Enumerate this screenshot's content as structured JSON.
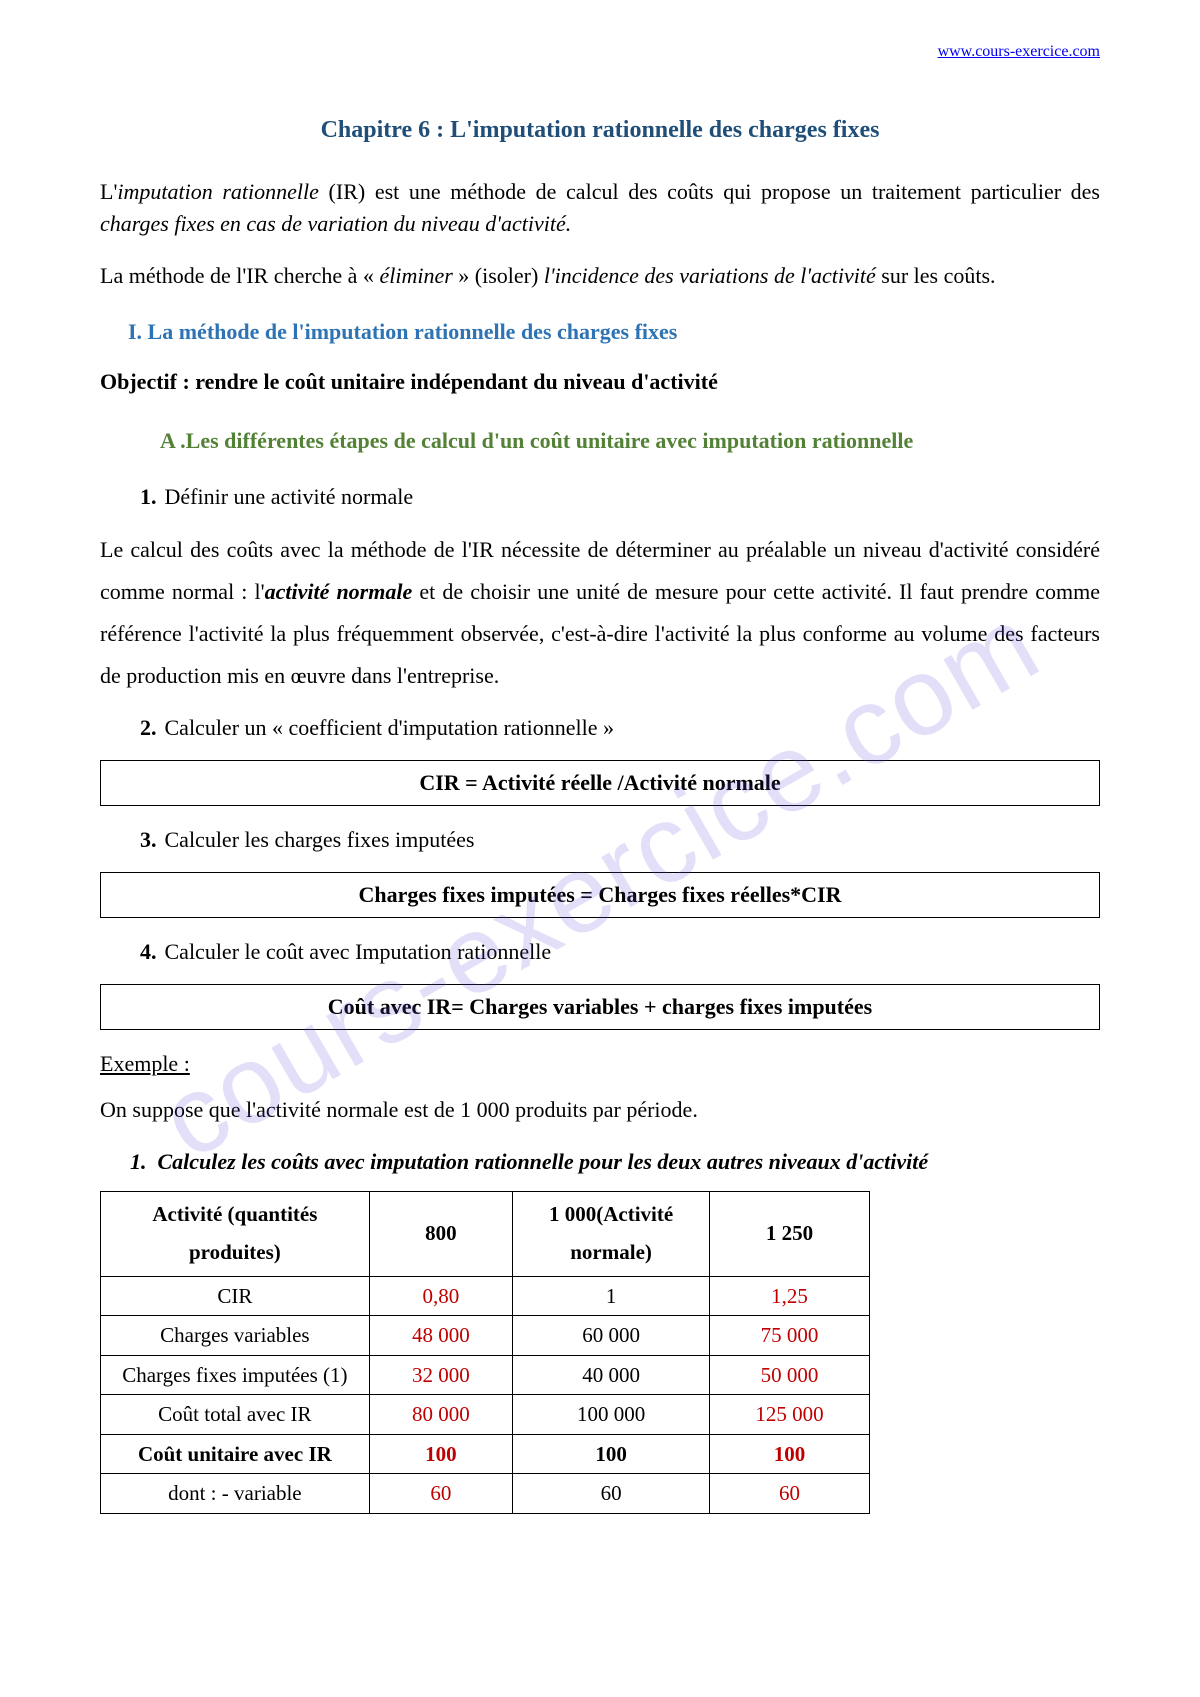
{
  "header_url": "www.cours-exercice.com",
  "watermark_text": "cours-exercice.com",
  "chapter_title": "Chapitre 6 : L'imputation rationnelle des charges fixes",
  "intro_p1_a": "L'",
  "intro_p1_b": "imputation rationnelle",
  "intro_p1_c": " (IR) est une méthode de calcul des coûts qui propose un traitement particulier  des  ",
  "intro_p1_d": "charges fixes en cas de variation du niveau d'activité.",
  "intro_p2_a": "La méthode de l'IR cherche à « ",
  "intro_p2_b": "éliminer",
  "intro_p2_c": " » (isoler) ",
  "intro_p2_d": "l'incidence des variations de l'activité",
  "intro_p2_e": " sur les coûts.",
  "section_I": "I.      La méthode de l'imputation rationnelle des charges fixes",
  "objectif": "Objectif : rendre le coût unitaire indépendant du niveau d'activité",
  "sub_a": "A .Les différentes étapes de calcul d'un coût unitaire avec imputation rationnelle",
  "step1_num": "1.",
  "step1_text": "Définir une activité normale",
  "step1_para_a": "Le calcul des coûts avec la méthode de l'IR nécessite de déterminer au préalable un niveau  d'activité considéré comme normal : l'",
  "step1_para_b": "activité normale",
  "step1_para_c": " et de choisir une unité de mesure pour cette activité. Il faut prendre comme référence l'activité la plus fréquemment observée, c'est-à-dire l'activité la plus conforme au volume des facteurs de production mis en œuvre dans l'entreprise.",
  "step2_num": "2.",
  "step2_text": "Calculer un « coefficient d'imputation rationnelle »",
  "formula1": "CIR  = Activité réelle /Activité normale",
  "step3_num": "3.",
  "step3_text": "Calculer les charges fixes imputées",
  "formula2": "Charges fixes imputées = Charges fixes réelles*CIR",
  "step4_num": "4.",
  "step4_text": "Calculer le coût avec Imputation rationnelle",
  "formula3": "Coût avec IR= Charges variables + charges fixes imputées",
  "exemple_label": "Exemple :",
  "exemple_intro": "On suppose que l'activité normale est de 1 000 produits par période.",
  "instruction_num": "1.",
  "instruction_text": "Calculez les coûts avec imputation rationnelle pour les deux autres niveaux d'activité",
  "table": {
    "head_col1": "Activité (quantités produites)",
    "head_col2": "800",
    "head_col3": "1 000(Activité normale)",
    "head_col4": "1 250",
    "rows": [
      {
        "label": "CIR",
        "c1": "0,80",
        "c2": "1",
        "c3": "1,25",
        "bold": false
      },
      {
        "label": "Charges variables",
        "c1": "48 000",
        "c2": "60 000",
        "c3": "75 000",
        "bold": false
      },
      {
        "label": "Charges fixes imputées (1)",
        "c1": "32 000",
        "c2": "40 000",
        "c3": "50 000",
        "bold": false
      },
      {
        "label": "Coût total avec IR",
        "c1": "80 000",
        "c2": "100 000",
        "c3": "125 000",
        "bold": false
      },
      {
        "label": "Coût unitaire avec IR",
        "c1": "100",
        "c2": "100",
        "c3": "100",
        "bold": true
      },
      {
        "label": "dont  : - variable",
        "c1": "60",
        "c2": "60",
        "c3": "60",
        "bold": false
      }
    ]
  },
  "colors": {
    "heading_blue": "#1f4e79",
    "section_blue": "#2e74b5",
    "sub_green": "#538135",
    "value_red": "#c00000",
    "link_blue": "#0000ee",
    "watermark": "rgba(100,80,220,0.18)"
  }
}
